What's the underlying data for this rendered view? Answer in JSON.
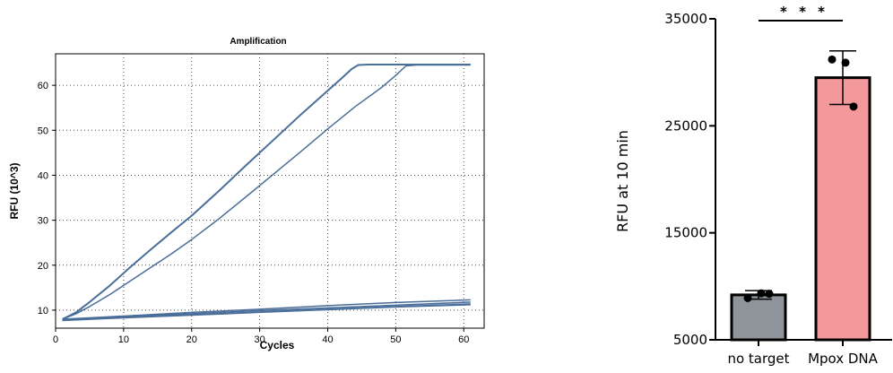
{
  "chart_data": [
    {
      "type": "line",
      "title": "Amplification",
      "xlabel": "Cycles",
      "ylabel": "RFU (10^3)",
      "xlim": [
        0,
        63
      ],
      "ylim": [
        6,
        67
      ],
      "xticks": [
        0,
        10,
        20,
        30,
        40,
        50,
        60
      ],
      "yticks": [
        10,
        20,
        30,
        40,
        50,
        60
      ],
      "grid": "dotted",
      "line_color": "#4a6e9a",
      "background": "#ffffff",
      "series": [
        {
          "x": [
            1,
            3,
            5,
            8,
            11,
            14,
            17,
            20,
            24,
            28,
            32,
            36,
            40,
            42,
            43.5,
            44.5,
            46,
            50,
            55,
            61
          ],
          "values": [
            8.0,
            9.5,
            11.8,
            15.5,
            19.6,
            23.5,
            27.3,
            31.0,
            36.5,
            42.2,
            47.8,
            53.4,
            58.8,
            61.5,
            63.6,
            64.5,
            64.6,
            64.6,
            64.6,
            64.6
          ]
        },
        {
          "x": [
            1,
            3,
            5,
            8,
            11,
            14,
            17,
            20,
            24,
            28,
            32,
            36,
            40,
            44,
            48,
            50,
            51.5,
            53,
            56,
            61
          ],
          "values": [
            8.0,
            9.2,
            10.8,
            13.5,
            16.5,
            19.5,
            22.5,
            25.7,
            30.3,
            35.2,
            40.2,
            45.2,
            50.3,
            55.2,
            59.6,
            62.2,
            64.3,
            64.5,
            64.5,
            64.5
          ]
        },
        {
          "x": [
            1,
            10,
            20,
            30,
            40,
            50,
            61
          ],
          "values": [
            8.0,
            8.7,
            9.5,
            10.2,
            11.0,
            11.7,
            12.3
          ]
        },
        {
          "x": [
            1,
            10,
            20,
            30,
            40,
            50,
            61
          ],
          "values": [
            7.9,
            8.5,
            9.2,
            9.9,
            10.5,
            11.1,
            11.8
          ]
        },
        {
          "x": [
            1,
            10,
            20,
            30,
            40,
            50,
            61
          ],
          "values": [
            7.8,
            8.4,
            9.0,
            9.6,
            10.2,
            10.8,
            11.4
          ]
        },
        {
          "x": [
            1,
            10,
            20,
            30,
            40,
            50,
            61
          ],
          "values": [
            7.7,
            8.3,
            8.9,
            9.5,
            10.1,
            10.7,
            11.2
          ]
        }
      ]
    },
    {
      "type": "bar",
      "ylabel": "RFU at 10 min",
      "ylim": [
        5000,
        35000
      ],
      "yticks": [
        "35000",
        "25000",
        "15000",
        "5000"
      ],
      "ytick_values": [
        35000,
        25000,
        15000,
        5000
      ],
      "categories": [
        "no target",
        "Mpox DNA"
      ],
      "values": [
        9200,
        29500
      ],
      "error": [
        400,
        2500
      ],
      "points": [
        [
          8900,
          9350,
          9300
        ],
        [
          31200,
          30900,
          26800
        ]
      ],
      "colors": [
        "#8e9499",
        "#f4999b"
      ],
      "significance": "* * *"
    }
  ]
}
